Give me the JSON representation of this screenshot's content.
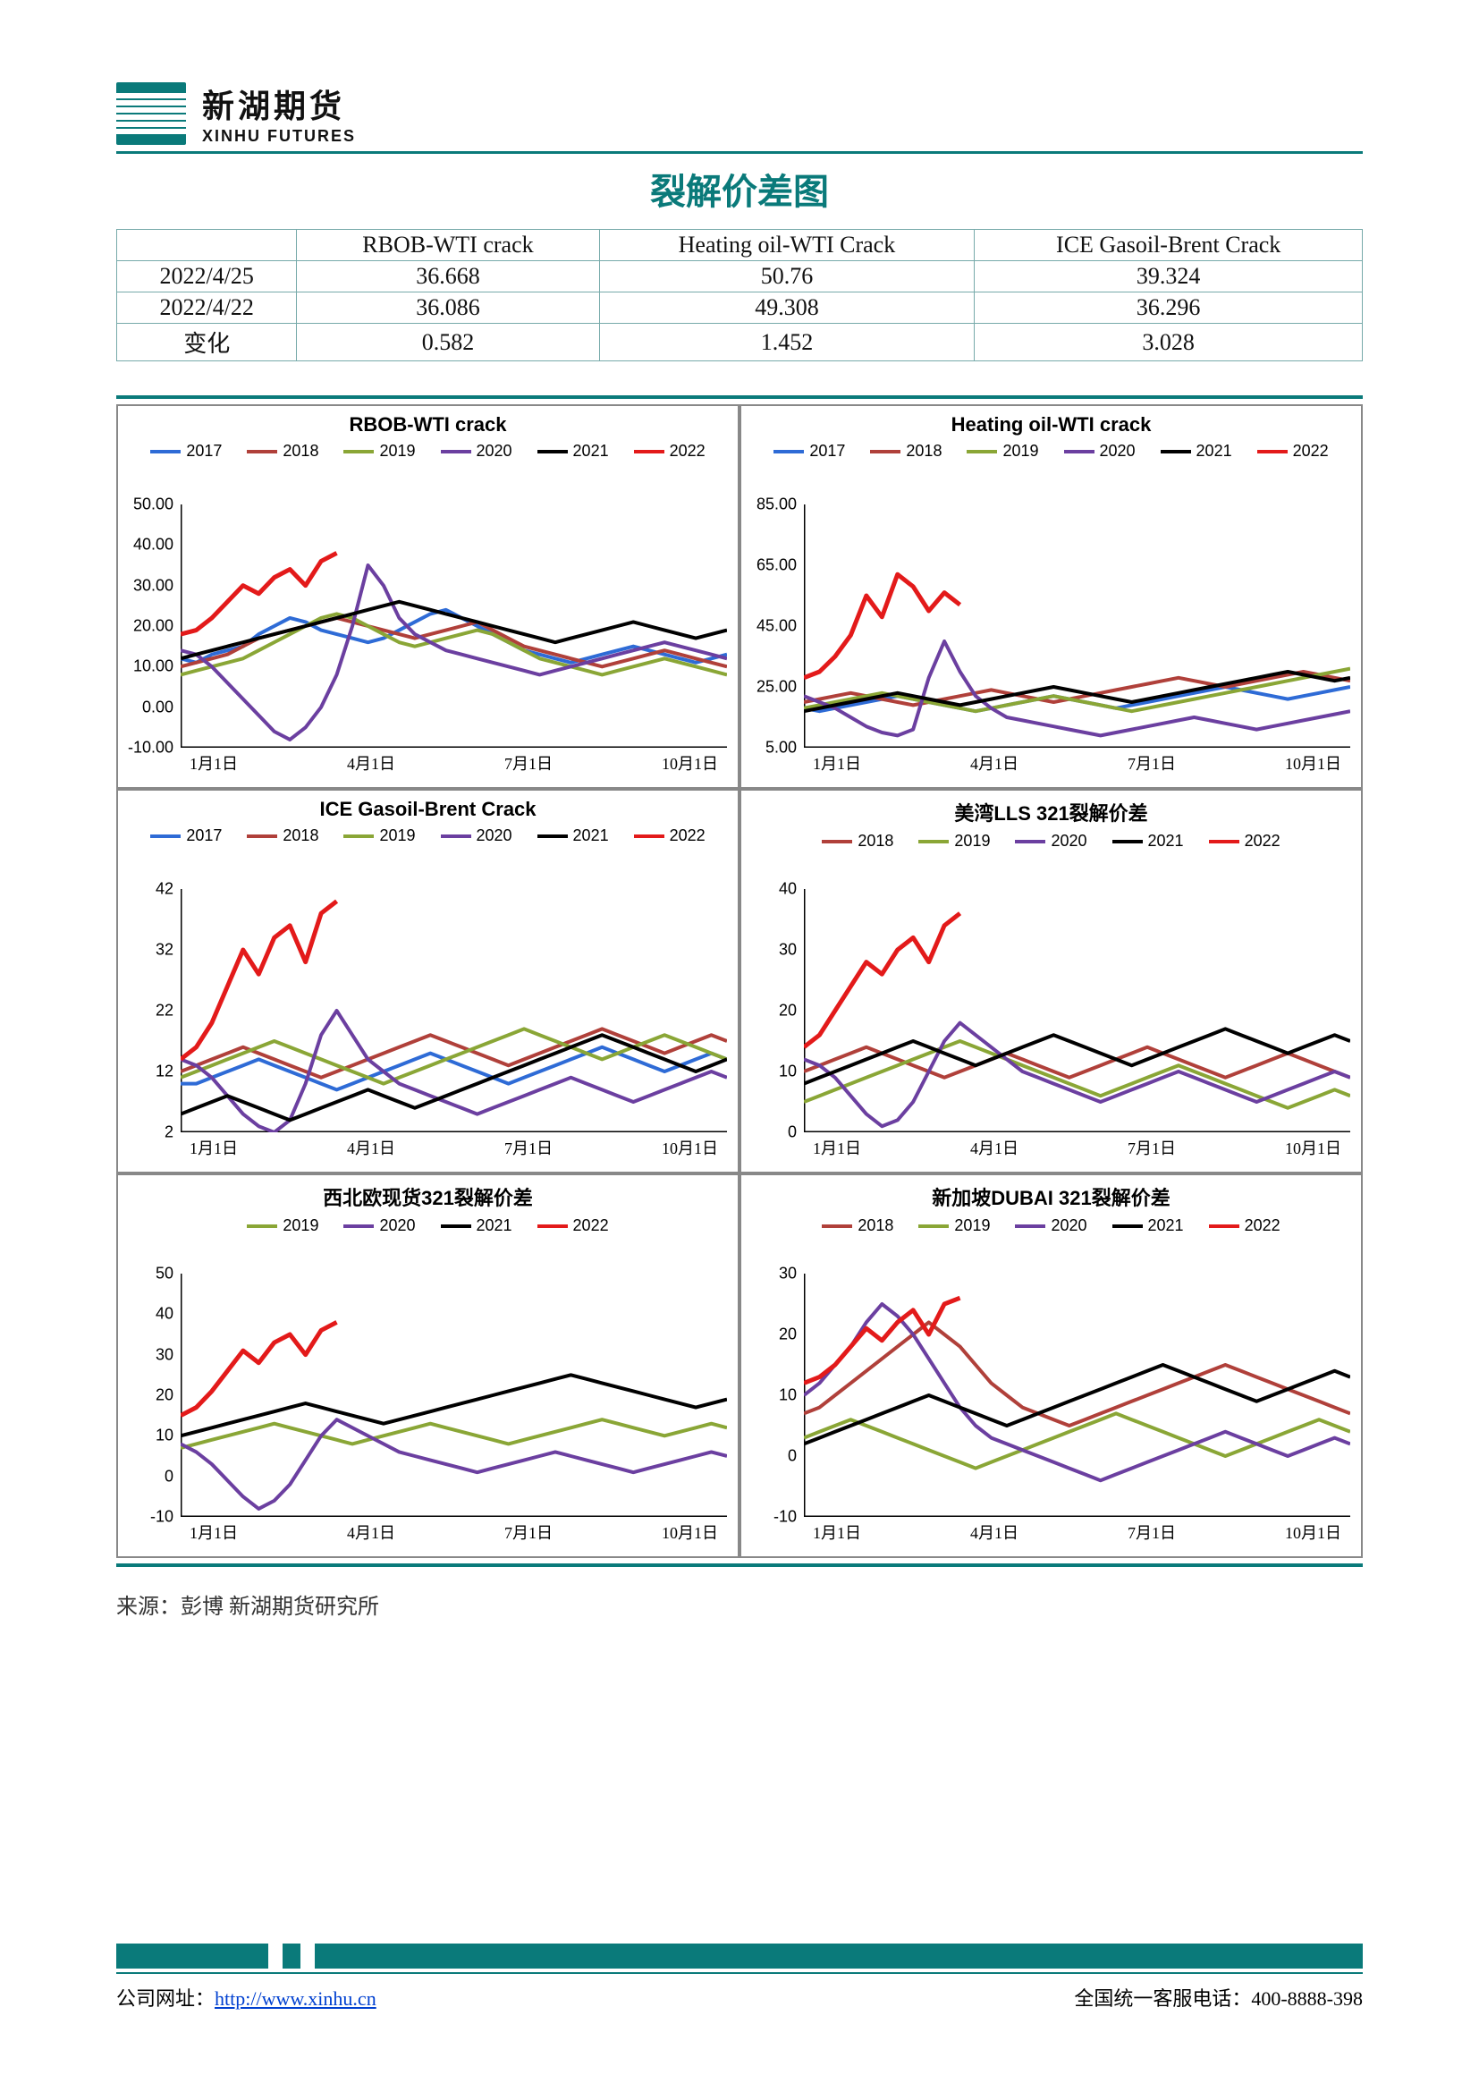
{
  "logo": {
    "cn": "新湖期货",
    "en": "XINHU FUTURES"
  },
  "page_title": "裂解价差图",
  "table": {
    "columns": [
      "",
      "RBOB-WTI crack",
      "Heating oil-WTI Crack",
      "ICE Gasoil-Brent Crack"
    ],
    "rows": [
      [
        "2022/4/25",
        "36.668",
        "50.76",
        "39.324"
      ],
      [
        "2022/4/22",
        "36.086",
        "49.308",
        "36.296"
      ],
      [
        "变化",
        "0.582",
        "1.452",
        "3.028"
      ]
    ]
  },
  "series_colors": {
    "2017": "#2e6bd6",
    "2018": "#b0403a",
    "2019": "#8aa636",
    "2020": "#6b3fa0",
    "2021": "#000000",
    "2022": "#e31a1a"
  },
  "xticks": [
    "1月1日",
    "4月1日",
    "7月1日",
    "10月1日"
  ],
  "charts": [
    {
      "title": "RBOB-WTI  crack",
      "legend": [
        "2017",
        "2018",
        "2019",
        "2020",
        "2021",
        "2022"
      ],
      "ylim": [
        -10,
        50
      ],
      "ytick_step": 10,
      "series": {
        "2017": [
          12,
          11,
          13,
          14,
          15,
          18,
          20,
          22,
          21,
          19,
          18,
          17,
          16,
          17,
          19,
          21,
          23,
          24,
          22,
          20,
          18,
          16,
          14,
          13,
          12,
          11,
          12,
          13,
          14,
          15,
          14,
          13,
          12,
          11,
          12,
          13
        ],
        "2018": [
          10,
          11,
          12,
          13,
          15,
          17,
          18,
          19,
          20,
          21,
          22,
          21,
          20,
          19,
          18,
          17,
          18,
          19,
          20,
          21,
          19,
          17,
          15,
          14,
          13,
          12,
          11,
          10,
          11,
          12,
          13,
          14,
          13,
          12,
          11,
          10
        ],
        "2019": [
          8,
          9,
          10,
          11,
          12,
          14,
          16,
          18,
          20,
          22,
          23,
          22,
          20,
          18,
          16,
          15,
          16,
          17,
          18,
          19,
          18,
          16,
          14,
          12,
          11,
          10,
          9,
          8,
          9,
          10,
          11,
          12,
          11,
          10,
          9,
          8
        ],
        "2020": [
          14,
          13,
          10,
          6,
          2,
          -2,
          -6,
          -8,
          -5,
          0,
          8,
          20,
          35,
          30,
          22,
          18,
          16,
          14,
          13,
          12,
          11,
          10,
          9,
          8,
          9,
          10,
          11,
          12,
          13,
          14,
          15,
          16,
          15,
          14,
          13,
          12
        ],
        "2021": [
          12,
          13,
          14,
          15,
          16,
          17,
          18,
          19,
          20,
          21,
          22,
          23,
          24,
          25,
          26,
          25,
          24,
          23,
          22,
          21,
          20,
          19,
          18,
          17,
          16,
          17,
          18,
          19,
          20,
          21,
          20,
          19,
          18,
          17,
          18,
          19
        ],
        "2022": [
          18,
          19,
          22,
          26,
          30,
          28,
          32,
          34,
          30,
          36,
          38
        ]
      }
    },
    {
      "title": "Heating oil-WTI crack",
      "legend": [
        "2017",
        "2018",
        "2019",
        "2020",
        "2021",
        "2022"
      ],
      "ylim": [
        5,
        85
      ],
      "ytick_step": 20,
      "series": {
        "2017": [
          18,
          17,
          18,
          19,
          20,
          21,
          22,
          21,
          20,
          19,
          18,
          17,
          18,
          19,
          20,
          21,
          22,
          21,
          20,
          19,
          18,
          19,
          20,
          21,
          22,
          23,
          24,
          25,
          24,
          23,
          22,
          21,
          22,
          23,
          24,
          25
        ],
        "2018": [
          20,
          21,
          22,
          23,
          22,
          21,
          20,
          19,
          20,
          21,
          22,
          23,
          24,
          23,
          22,
          21,
          20,
          21,
          22,
          23,
          24,
          25,
          26,
          27,
          28,
          27,
          26,
          25,
          26,
          27,
          28,
          29,
          30,
          29,
          28,
          27
        ],
        "2019": [
          18,
          19,
          20,
          21,
          22,
          23,
          22,
          21,
          20,
          19,
          18,
          17,
          18,
          19,
          20,
          21,
          22,
          21,
          20,
          19,
          18,
          17,
          18,
          19,
          20,
          21,
          22,
          23,
          24,
          25,
          26,
          27,
          28,
          29,
          30,
          31
        ],
        "2020": [
          22,
          20,
          18,
          15,
          12,
          10,
          9,
          11,
          28,
          40,
          30,
          22,
          18,
          15,
          14,
          13,
          12,
          11,
          10,
          9,
          10,
          11,
          12,
          13,
          14,
          15,
          14,
          13,
          12,
          11,
          12,
          13,
          14,
          15,
          16,
          17
        ],
        "2021": [
          17,
          18,
          19,
          20,
          21,
          22,
          23,
          22,
          21,
          20,
          19,
          20,
          21,
          22,
          23,
          24,
          25,
          24,
          23,
          22,
          21,
          20,
          21,
          22,
          23,
          24,
          25,
          26,
          27,
          28,
          29,
          30,
          29,
          28,
          27,
          28
        ],
        "2022": [
          28,
          30,
          35,
          42,
          55,
          48,
          62,
          58,
          50,
          56,
          52
        ]
      }
    },
    {
      "title": "ICE Gasoil-Brent Crack",
      "legend": [
        "2017",
        "2018",
        "2019",
        "2020",
        "2021",
        "2022"
      ],
      "ylim": [
        2,
        42
      ],
      "ytick_step": 10,
      "series": {
        "2017": [
          10,
          10,
          11,
          12,
          13,
          14,
          13,
          12,
          11,
          10,
          9,
          10,
          11,
          12,
          13,
          14,
          15,
          14,
          13,
          12,
          11,
          10,
          11,
          12,
          13,
          14,
          15,
          16,
          15,
          14,
          13,
          12,
          13,
          14,
          15,
          14
        ],
        "2018": [
          12,
          13,
          14,
          15,
          16,
          15,
          14,
          13,
          12,
          11,
          12,
          13,
          14,
          15,
          16,
          17,
          18,
          17,
          16,
          15,
          14,
          13,
          14,
          15,
          16,
          17,
          18,
          19,
          18,
          17,
          16,
          15,
          16,
          17,
          18,
          17
        ],
        "2019": [
          11,
          12,
          13,
          14,
          15,
          16,
          17,
          16,
          15,
          14,
          13,
          12,
          11,
          10,
          11,
          12,
          13,
          14,
          15,
          16,
          17,
          18,
          19,
          18,
          17,
          16,
          15,
          14,
          15,
          16,
          17,
          18,
          17,
          16,
          15,
          14
        ],
        "2020": [
          14,
          13,
          11,
          8,
          5,
          3,
          2,
          4,
          10,
          18,
          22,
          18,
          14,
          12,
          10,
          9,
          8,
          7,
          6,
          5,
          6,
          7,
          8,
          9,
          10,
          11,
          10,
          9,
          8,
          7,
          8,
          9,
          10,
          11,
          12,
          11
        ],
        "2021": [
          5,
          6,
          7,
          8,
          7,
          6,
          5,
          4,
          5,
          6,
          7,
          8,
          9,
          8,
          7,
          6,
          7,
          8,
          9,
          10,
          11,
          12,
          13,
          14,
          15,
          16,
          17,
          18,
          17,
          16,
          15,
          14,
          13,
          12,
          13,
          14
        ],
        "2022": [
          14,
          16,
          20,
          26,
          32,
          28,
          34,
          36,
          30,
          38,
          40
        ]
      }
    },
    {
      "title": "美湾LLS 321裂解价差",
      "legend": [
        "2018",
        "2019",
        "2020",
        "2021",
        "2022"
      ],
      "ylim": [
        0,
        40
      ],
      "ytick_step": 10,
      "series": {
        "2018": [
          10,
          11,
          12,
          13,
          14,
          13,
          12,
          11,
          10,
          9,
          10,
          11,
          12,
          13,
          12,
          11,
          10,
          9,
          10,
          11,
          12,
          13,
          14,
          13,
          12,
          11,
          10,
          9,
          10,
          11,
          12,
          13,
          12,
          11,
          10,
          9
        ],
        "2019": [
          5,
          6,
          7,
          8,
          9,
          10,
          11,
          12,
          13,
          14,
          15,
          14,
          13,
          12,
          11,
          10,
          9,
          8,
          7,
          6,
          7,
          8,
          9,
          10,
          11,
          10,
          9,
          8,
          7,
          6,
          5,
          4,
          5,
          6,
          7,
          6
        ],
        "2020": [
          12,
          11,
          9,
          6,
          3,
          1,
          2,
          5,
          10,
          15,
          18,
          16,
          14,
          12,
          10,
          9,
          8,
          7,
          6,
          5,
          6,
          7,
          8,
          9,
          10,
          9,
          8,
          7,
          6,
          5,
          6,
          7,
          8,
          9,
          10,
          9
        ],
        "2021": [
          8,
          9,
          10,
          11,
          12,
          13,
          14,
          15,
          14,
          13,
          12,
          11,
          12,
          13,
          14,
          15,
          16,
          15,
          14,
          13,
          12,
          11,
          12,
          13,
          14,
          15,
          16,
          17,
          16,
          15,
          14,
          13,
          14,
          15,
          16,
          15
        ],
        "2022": [
          14,
          16,
          20,
          24,
          28,
          26,
          30,
          32,
          28,
          34,
          36
        ]
      }
    },
    {
      "title": "西北欧现货321裂解价差",
      "legend": [
        "2019",
        "2020",
        "2021",
        "2022"
      ],
      "ylim": [
        -10,
        50
      ],
      "ytick_step": 10,
      "series": {
        "2019": [
          7,
          8,
          9,
          10,
          11,
          12,
          13,
          12,
          11,
          10,
          9,
          8,
          9,
          10,
          11,
          12,
          13,
          12,
          11,
          10,
          9,
          8,
          9,
          10,
          11,
          12,
          13,
          14,
          13,
          12,
          11,
          10,
          11,
          12,
          13,
          12
        ],
        "2020": [
          8,
          6,
          3,
          -1,
          -5,
          -8,
          -6,
          -2,
          4,
          10,
          14,
          12,
          10,
          8,
          6,
          5,
          4,
          3,
          2,
          1,
          2,
          3,
          4,
          5,
          6,
          5,
          4,
          3,
          2,
          1,
          2,
          3,
          4,
          5,
          6,
          5
        ],
        "2021": [
          10,
          11,
          12,
          13,
          14,
          15,
          16,
          17,
          18,
          17,
          16,
          15,
          14,
          13,
          14,
          15,
          16,
          17,
          18,
          19,
          20,
          21,
          22,
          23,
          24,
          25,
          24,
          23,
          22,
          21,
          20,
          19,
          18,
          17,
          18,
          19
        ],
        "2022": [
          15,
          17,
          21,
          26,
          31,
          28,
          33,
          35,
          30,
          36,
          38
        ]
      }
    },
    {
      "title": "新加坡DUBAI 321裂解价差",
      "legend": [
        "2018",
        "2019",
        "2020",
        "2021",
        "2022"
      ],
      "ylim": [
        -10,
        30
      ],
      "ytick_step": 10,
      "series": {
        "2018": [
          7,
          8,
          10,
          12,
          14,
          16,
          18,
          20,
          22,
          20,
          18,
          15,
          12,
          10,
          8,
          7,
          6,
          5,
          6,
          7,
          8,
          9,
          10,
          11,
          12,
          13,
          14,
          15,
          14,
          13,
          12,
          11,
          10,
          9,
          8,
          7
        ],
        "2019": [
          3,
          4,
          5,
          6,
          5,
          4,
          3,
          2,
          1,
          0,
          -1,
          -2,
          -1,
          0,
          1,
          2,
          3,
          4,
          5,
          6,
          7,
          6,
          5,
          4,
          3,
          2,
          1,
          0,
          1,
          2,
          3,
          4,
          5,
          6,
          5,
          4
        ],
        "2020": [
          10,
          12,
          15,
          18,
          22,
          25,
          23,
          20,
          16,
          12,
          8,
          5,
          3,
          2,
          1,
          0,
          -1,
          -2,
          -3,
          -4,
          -3,
          -2,
          -1,
          0,
          1,
          2,
          3,
          4,
          3,
          2,
          1,
          0,
          1,
          2,
          3,
          2
        ],
        "2021": [
          2,
          3,
          4,
          5,
          6,
          7,
          8,
          9,
          10,
          9,
          8,
          7,
          6,
          5,
          6,
          7,
          8,
          9,
          10,
          11,
          12,
          13,
          14,
          15,
          14,
          13,
          12,
          11,
          10,
          9,
          10,
          11,
          12,
          13,
          14,
          13
        ],
        "2022": [
          12,
          13,
          15,
          18,
          21,
          19,
          22,
          24,
          20,
          25,
          26
        ]
      }
    }
  ],
  "source": "来源：彭博 新湖期货研究所",
  "footer": {
    "left_label": "公司网址：",
    "url": "http://www.xinhu.cn",
    "right": "全国统一客服电话：400-8888-398"
  }
}
